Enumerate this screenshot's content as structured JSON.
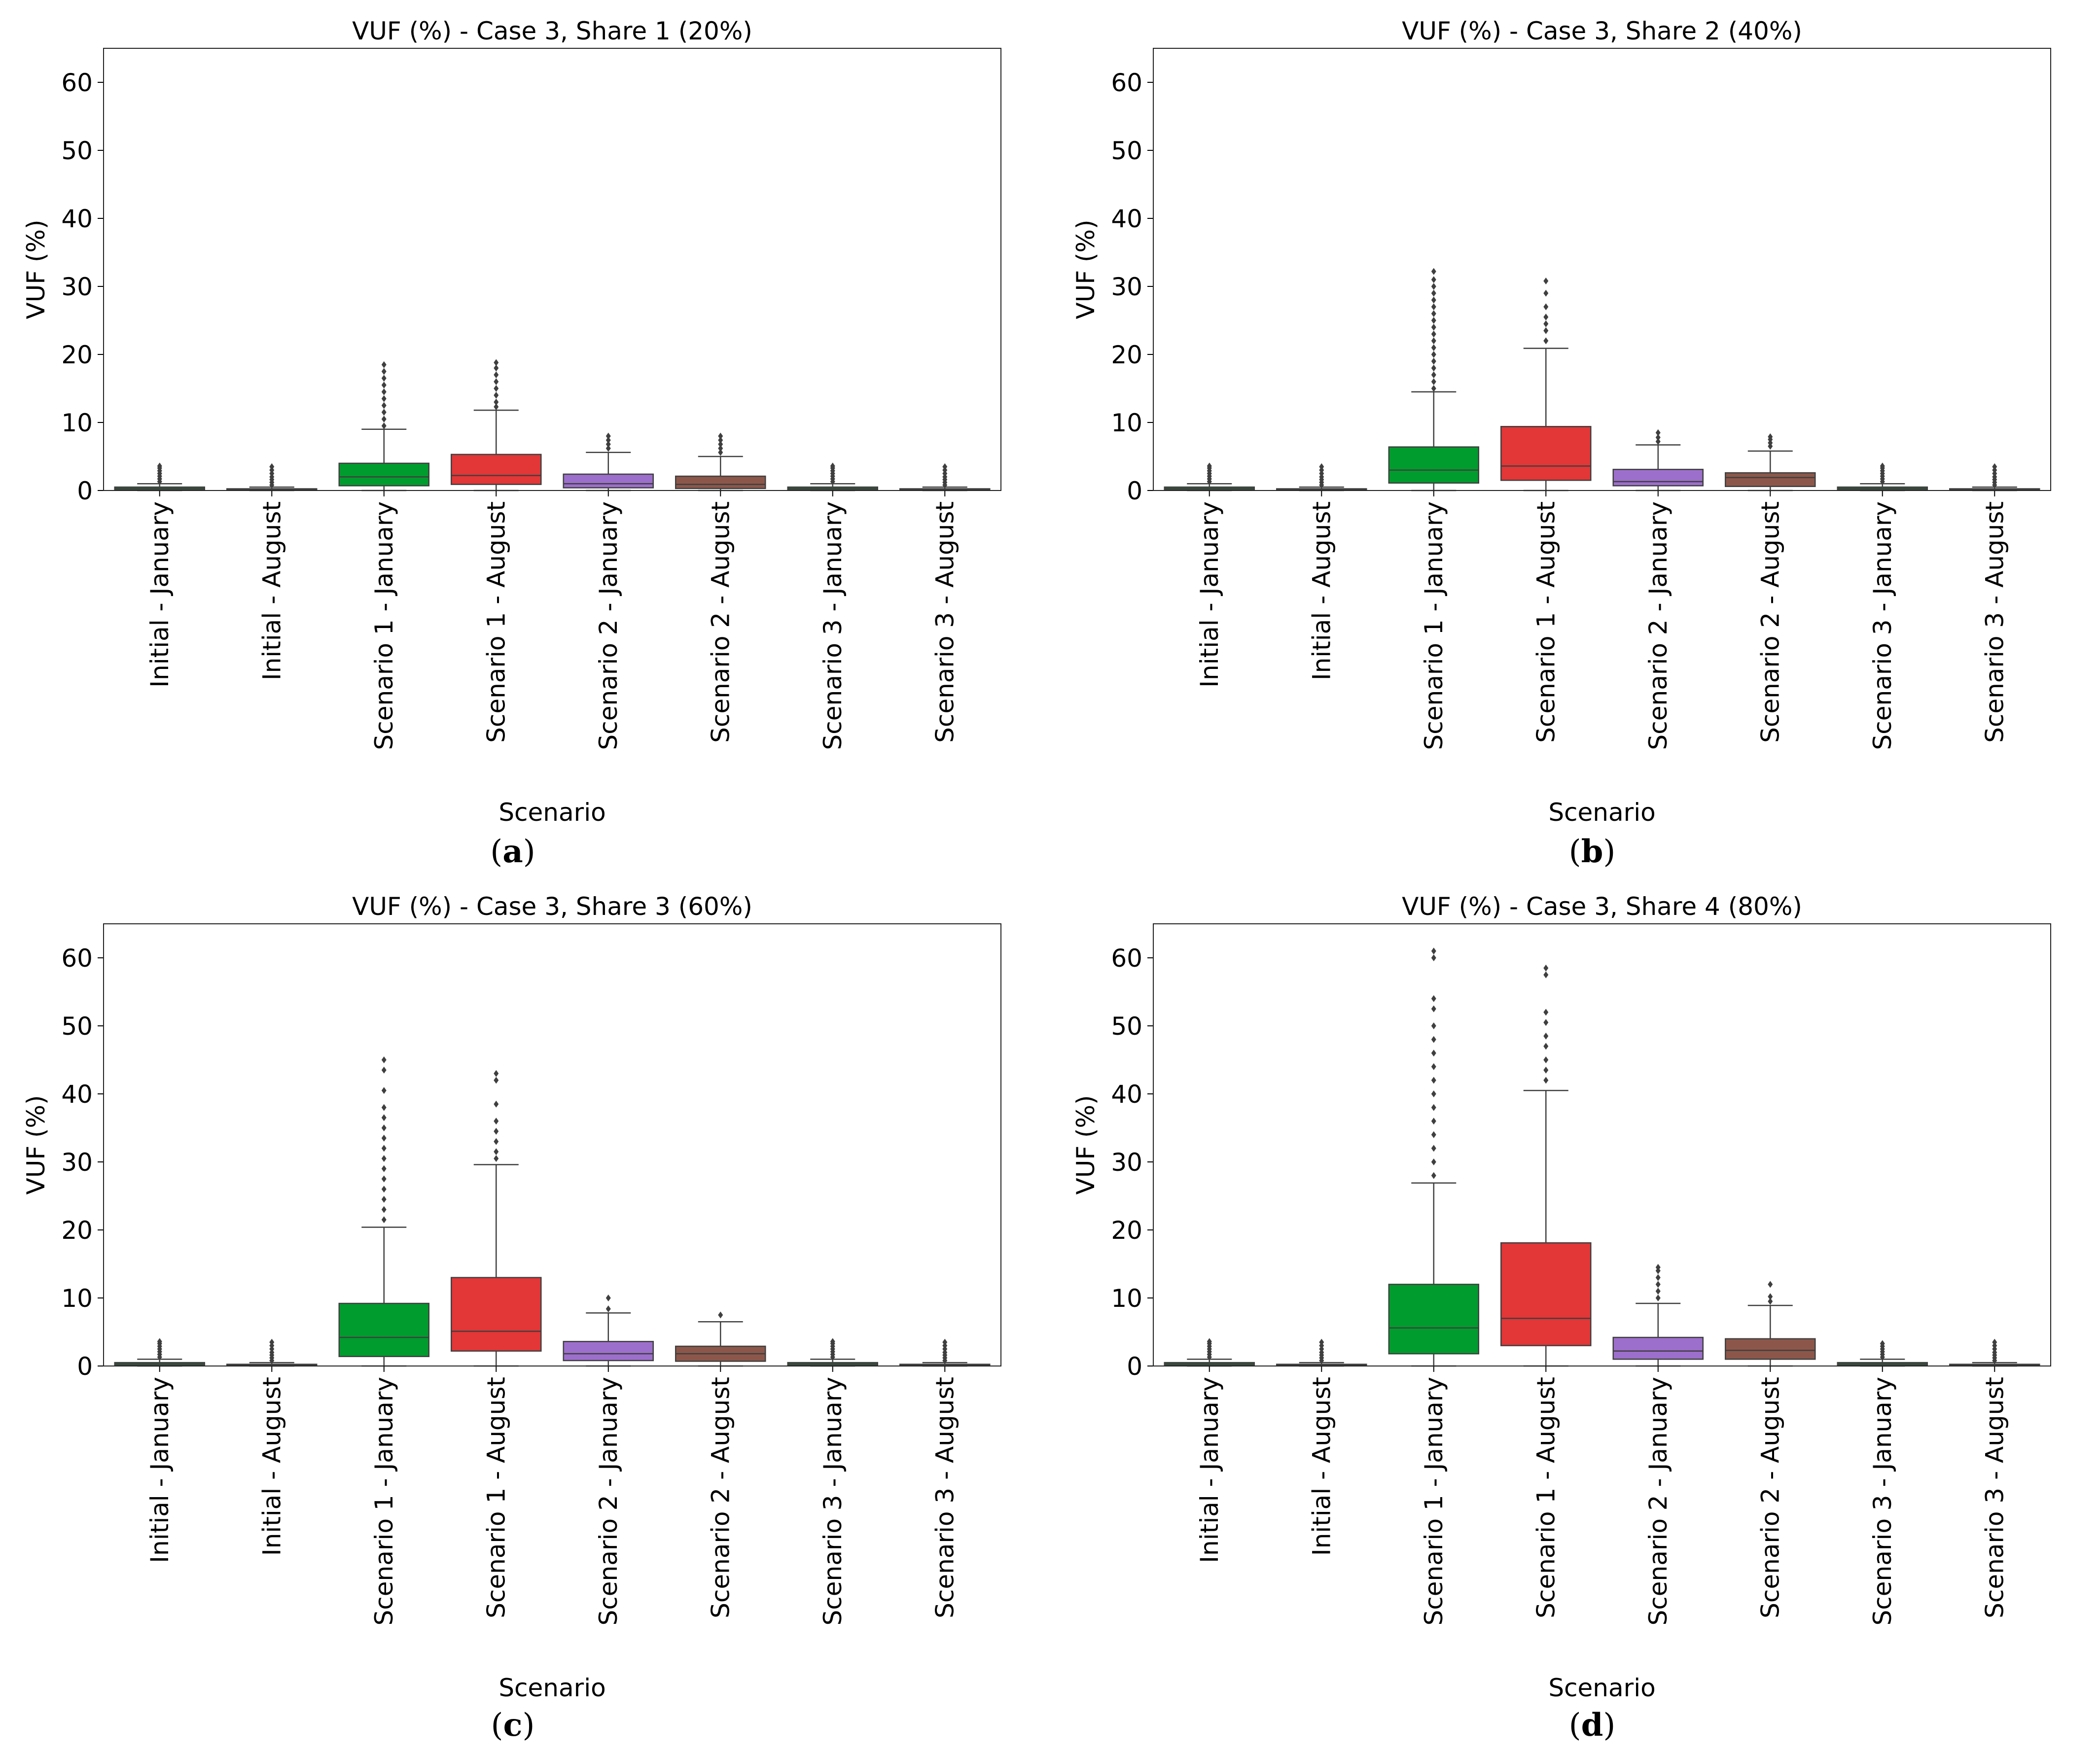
{
  "figure": {
    "categories": [
      "Initial - January",
      "Initial - August",
      "Scenario 1 - January",
      "Scenario 1 - August",
      "Scenario 2 - January",
      "Scenario 2 - August",
      "Scenario 3 - January",
      "Scenario 3 - August"
    ],
    "palette": [
      "#009c2e",
      "#009c2e",
      "#009c2e",
      "#e23637",
      "#9d6fcc",
      "#8c574a",
      "#009c2e",
      "#009c2e"
    ]
  },
  "chart_data": [
    {
      "type": "box",
      "panel": "a",
      "title": "VUF (%) - Case 3, Share 1 (20%)",
      "xlabel": "Scenario",
      "ylabel": "VUF (%)",
      "ylim": [
        0,
        65
      ],
      "yticks": [
        "0",
        "10",
        "20",
        "30",
        "40",
        "50",
        "60"
      ],
      "categories": [
        "Initial - January",
        "Initial - August",
        "Scenario 1 - January",
        "Scenario 1 - August",
        "Scenario 2 - January",
        "Scenario 2 - August",
        "Scenario 3 - January",
        "Scenario 3 - August"
      ],
      "boxes": [
        {
          "min": 0,
          "q1": 0.1,
          "median": 0.3,
          "q3": 0.5,
          "max": 1.0,
          "outliers": [
            1.3,
            1.7,
            2.1,
            2.5,
            2.9,
            3.3,
            3.6
          ]
        },
        {
          "min": 0,
          "q1": 0.05,
          "median": 0.15,
          "q3": 0.25,
          "max": 0.5,
          "outliers": [
            0.8,
            1.2,
            1.6,
            2.0,
            2.5,
            3.0,
            3.5
          ]
        },
        {
          "min": 0,
          "q1": 0.7,
          "median": 2.0,
          "q3": 4.0,
          "max": 9.0,
          "outliers": [
            9.5,
            10.5,
            11.5,
            12.5,
            13.5,
            14.5,
            15.5,
            16.5,
            17.5,
            18.5
          ]
        },
        {
          "min": 0,
          "q1": 0.9,
          "median": 2.2,
          "q3": 5.3,
          "max": 11.8,
          "outliers": [
            12.3,
            13.0,
            14.0,
            15.0,
            16.0,
            17.0,
            18.0,
            18.8
          ]
        },
        {
          "min": 0,
          "q1": 0.4,
          "median": 1.0,
          "q3": 2.4,
          "max": 5.6,
          "outliers": [
            6.2,
            6.8,
            7.4,
            8.0
          ]
        },
        {
          "min": 0,
          "q1": 0.3,
          "median": 0.9,
          "q3": 2.1,
          "max": 5.0,
          "outliers": [
            5.6,
            6.2,
            6.8,
            7.4,
            8.0
          ]
        },
        {
          "min": 0,
          "q1": 0.1,
          "median": 0.3,
          "q3": 0.5,
          "max": 1.0,
          "outliers": [
            1.3,
            1.7,
            2.1,
            2.5,
            2.9,
            3.3,
            3.6
          ]
        },
        {
          "min": 0,
          "q1": 0.05,
          "median": 0.15,
          "q3": 0.25,
          "max": 0.5,
          "outliers": [
            0.8,
            1.2,
            1.6,
            2.0,
            2.5,
            3.0,
            3.5
          ]
        }
      ]
    },
    {
      "type": "box",
      "panel": "b",
      "title": "VUF (%) - Case 3, Share 2 (40%)",
      "xlabel": "Scenario",
      "ylabel": "VUF (%)",
      "ylim": [
        0,
        65
      ],
      "yticks": [
        "0",
        "10",
        "20",
        "30",
        "40",
        "50",
        "60"
      ],
      "categories": [
        "Initial - January",
        "Initial - August",
        "Scenario 1 - January",
        "Scenario 1 - August",
        "Scenario 2 - January",
        "Scenario 2 - August",
        "Scenario 3 - January",
        "Scenario 3 - August"
      ],
      "boxes": [
        {
          "min": 0,
          "q1": 0.1,
          "median": 0.3,
          "q3": 0.5,
          "max": 1.0,
          "outliers": [
            1.3,
            1.7,
            2.1,
            2.5,
            2.9,
            3.3,
            3.6
          ]
        },
        {
          "min": 0,
          "q1": 0.05,
          "median": 0.15,
          "q3": 0.25,
          "max": 0.5,
          "outliers": [
            0.8,
            1.2,
            1.6,
            2.0,
            2.5,
            3.0,
            3.5
          ]
        },
        {
          "min": 0,
          "q1": 1.1,
          "median": 3.0,
          "q3": 6.4,
          "max": 14.5,
          "outliers": [
            15.0,
            16.0,
            17.0,
            18.0,
            19.0,
            20.0,
            21.0,
            22.0,
            23.0,
            24.0,
            25.0,
            26.0,
            27.0,
            28.0,
            29.0,
            30.0,
            31.0,
            32.2
          ]
        },
        {
          "min": 0,
          "q1": 1.5,
          "median": 3.6,
          "q3": 9.4,
          "max": 20.9,
          "outliers": [
            22.0,
            23.5,
            24.5,
            25.5,
            27.0,
            29.0,
            30.8
          ]
        },
        {
          "min": 0,
          "q1": 0.7,
          "median": 1.3,
          "q3": 3.1,
          "max": 6.7,
          "outliers": [
            7.2,
            7.8,
            8.5
          ]
        },
        {
          "min": 0,
          "q1": 0.6,
          "median": 1.9,
          "q3": 2.6,
          "max": 5.8,
          "outliers": [
            6.5,
            7.0,
            7.5,
            7.9
          ]
        },
        {
          "min": 0,
          "q1": 0.1,
          "median": 0.3,
          "q3": 0.5,
          "max": 1.0,
          "outliers": [
            1.3,
            1.7,
            2.1,
            2.5,
            2.9,
            3.3,
            3.6
          ]
        },
        {
          "min": 0,
          "q1": 0.05,
          "median": 0.15,
          "q3": 0.25,
          "max": 0.5,
          "outliers": [
            0.8,
            1.2,
            1.6,
            2.0,
            2.5,
            3.0,
            3.5
          ]
        }
      ]
    },
    {
      "type": "box",
      "panel": "c",
      "title": "VUF (%) - Case 3, Share 3 (60%)",
      "xlabel": "Scenario",
      "ylabel": "VUF (%)",
      "ylim": [
        0,
        65
      ],
      "yticks": [
        "0",
        "10",
        "20",
        "30",
        "40",
        "50",
        "60"
      ],
      "categories": [
        "Initial - January",
        "Initial - August",
        "Scenario 1 - January",
        "Scenario 1 - August",
        "Scenario 2 - January",
        "Scenario 2 - August",
        "Scenario 3 - January",
        "Scenario 3 - August"
      ],
      "boxes": [
        {
          "min": 0,
          "q1": 0.1,
          "median": 0.3,
          "q3": 0.5,
          "max": 1.0,
          "outliers": [
            1.3,
            1.7,
            2.1,
            2.5,
            2.9,
            3.3,
            3.6
          ]
        },
        {
          "min": 0,
          "q1": 0.05,
          "median": 0.15,
          "q3": 0.25,
          "max": 0.5,
          "outliers": [
            0.8,
            1.2,
            1.6,
            2.0,
            2.5,
            3.0,
            3.5
          ]
        },
        {
          "min": 0,
          "q1": 1.4,
          "median": 4.2,
          "q3": 9.2,
          "max": 20.4,
          "outliers": [
            21.5,
            23.0,
            24.5,
            26.0,
            27.5,
            29.0,
            30.5,
            32.0,
            33.5,
            35.0,
            36.5,
            38.0,
            40.5,
            43.5,
            45.0
          ]
        },
        {
          "min": 0,
          "q1": 2.2,
          "median": 5.1,
          "q3": 13.0,
          "max": 29.6,
          "outliers": [
            30.5,
            31.5,
            33.0,
            34.5,
            36.0,
            38.5,
            42.0,
            43.0
          ]
        },
        {
          "min": 0,
          "q1": 0.8,
          "median": 1.8,
          "q3": 3.6,
          "max": 7.8,
          "outliers": [
            8.4,
            10.0
          ]
        },
        {
          "min": 0,
          "q1": 0.7,
          "median": 1.8,
          "q3": 2.9,
          "max": 6.5,
          "outliers": [
            7.5
          ]
        },
        {
          "min": 0,
          "q1": 0.1,
          "median": 0.3,
          "q3": 0.5,
          "max": 1.0,
          "outliers": [
            1.3,
            1.7,
            2.1,
            2.5,
            2.9,
            3.3,
            3.6
          ]
        },
        {
          "min": 0,
          "q1": 0.05,
          "median": 0.15,
          "q3": 0.25,
          "max": 0.5,
          "outliers": [
            0.8,
            1.2,
            1.6,
            2.0,
            2.5,
            3.0,
            3.5
          ]
        }
      ]
    },
    {
      "type": "box",
      "panel": "d",
      "title": "VUF (%) - Case 3, Share 4 (80%)",
      "xlabel": "Scenario",
      "ylabel": "VUF (%)",
      "ylim": [
        0,
        65
      ],
      "yticks": [
        "0",
        "10",
        "20",
        "30",
        "40",
        "50",
        "60"
      ],
      "categories": [
        "Initial - January",
        "Initial - August",
        "Scenario 1 - January",
        "Scenario 1 - August",
        "Scenario 2 - January",
        "Scenario 2 - August",
        "Scenario 3 - January",
        "Scenario 3 - August"
      ],
      "boxes": [
        {
          "min": 0,
          "q1": 0.1,
          "median": 0.3,
          "q3": 0.5,
          "max": 1.0,
          "outliers": [
            1.3,
            1.7,
            2.1,
            2.5,
            2.9,
            3.3,
            3.6
          ]
        },
        {
          "min": 0,
          "q1": 0.05,
          "median": 0.15,
          "q3": 0.25,
          "max": 0.5,
          "outliers": [
            0.8,
            1.2,
            1.6,
            2.0,
            2.5,
            3.0,
            3.5
          ]
        },
        {
          "min": 0,
          "q1": 1.8,
          "median": 5.6,
          "q3": 12.0,
          "max": 26.9,
          "outliers": [
            28.0,
            30.0,
            32.0,
            34.0,
            36.0,
            38.0,
            40.0,
            42.0,
            44.0,
            46.0,
            48.0,
            50.0,
            52.5,
            54.0,
            60.0,
            61.0
          ]
        },
        {
          "min": 0,
          "q1": 3.0,
          "median": 7.0,
          "q3": 18.1,
          "max": 40.5,
          "outliers": [
            42.0,
            43.5,
            45.0,
            47.0,
            48.5,
            50.5,
            52.0,
            57.5,
            58.5
          ]
        },
        {
          "min": 0,
          "q1": 1.0,
          "median": 2.2,
          "q3": 4.2,
          "max": 9.2,
          "outliers": [
            10.0,
            11.0,
            12.0,
            13.0,
            14.0,
            14.5
          ]
        },
        {
          "min": 0,
          "q1": 1.0,
          "median": 2.3,
          "q3": 4.0,
          "max": 8.9,
          "outliers": [
            9.5,
            10.2,
            12.0
          ]
        },
        {
          "min": 0,
          "q1": 0.1,
          "median": 0.3,
          "q3": 0.5,
          "max": 1.0,
          "outliers": [
            1.3,
            1.7,
            2.1,
            2.5,
            2.9,
            3.3
          ]
        },
        {
          "min": 0,
          "q1": 0.05,
          "median": 0.15,
          "q3": 0.25,
          "max": 0.5,
          "outliers": [
            0.8,
            1.2,
            1.6,
            2.0,
            2.5,
            3.0,
            3.5
          ]
        }
      ]
    }
  ],
  "captions": [
    "a",
    "b",
    "c",
    "d"
  ]
}
